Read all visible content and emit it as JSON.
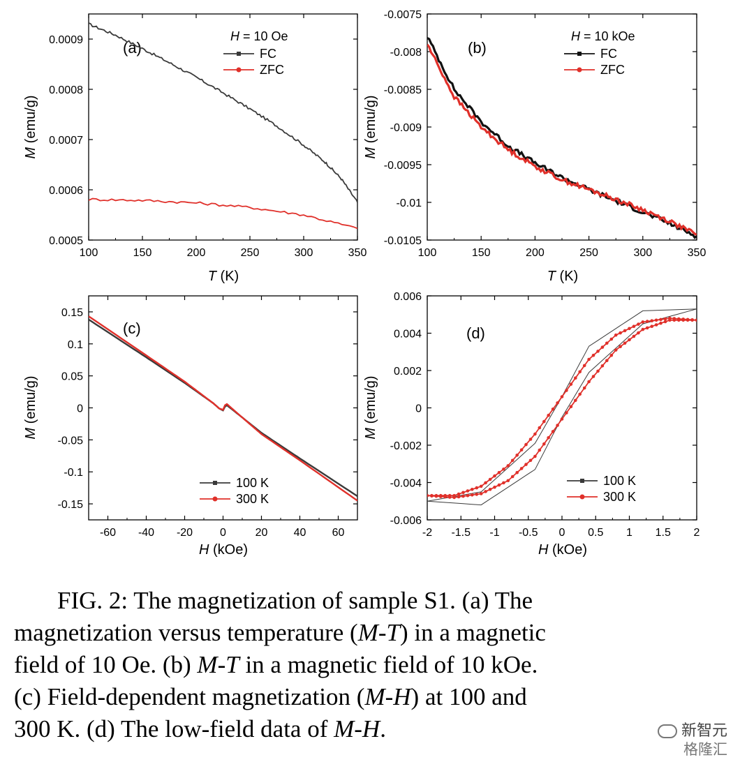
{
  "panels": [
    {
      "id": "a",
      "label": "(a)",
      "field_label": "H = 10 Oe",
      "field_var": "H",
      "field_rest": " = 10 Oe",
      "xlabel_var": "T",
      "xlabel_unit": " (K)",
      "ylabel_var": "M",
      "ylabel_unit": " (emu/g)",
      "xticks": [
        "100",
        "150",
        "200",
        "250",
        "300",
        "350"
      ],
      "yticks": [
        "0.0005",
        "0.0006",
        "0.0007",
        "0.0008",
        "0.0009"
      ],
      "legend": [
        "FC",
        "ZFC"
      ]
    },
    {
      "id": "b",
      "label": "(b)",
      "field_label": "H = 10 kOe",
      "field_var": "H",
      "field_rest": " = 10 kOe",
      "xlabel_var": "T",
      "xlabel_unit": " (K)",
      "ylabel_var": "M",
      "ylabel_unit": " (emu/g)",
      "xticks": [
        "100",
        "150",
        "200",
        "250",
        "300",
        "350"
      ],
      "yticks": [
        "-0.0105",
        "-0.01",
        "-0.0095",
        "-0.009",
        "-0.0085",
        "-0.008",
        "-0.0075"
      ],
      "legend": [
        "FC",
        "ZFC"
      ]
    },
    {
      "id": "c",
      "label": "(c)",
      "xlabel_var": "H",
      "xlabel_unit": " (kOe)",
      "ylabel_var": "M",
      "ylabel_unit": " (emu/g)",
      "xticks": [
        "-60",
        "-40",
        "-20",
        "0",
        "20",
        "40",
        "60"
      ],
      "yticks": [
        "-0.15",
        "-0.1",
        "-0.05",
        "0",
        "0.05",
        "0.1",
        "0.15"
      ],
      "legend": [
        "100 K",
        "300 K"
      ]
    },
    {
      "id": "d",
      "label": "(d)",
      "xlabel_var": "H",
      "xlabel_unit": " (kOe)",
      "ylabel_var": "M",
      "ylabel_unit": " (emu/g)",
      "xticks": [
        "-2",
        "-1.5",
        "-1",
        "-0.5",
        "0",
        "0.5",
        "1",
        "1.5",
        "2"
      ],
      "yticks": [
        "-0.006",
        "-0.004",
        "-0.002",
        "0",
        "0.002",
        "0.004",
        "0.006"
      ],
      "legend": [
        "100 K",
        "300 K"
      ]
    }
  ],
  "colors": {
    "black_series": "#3a3a3a",
    "red_series": "#e0302a"
  },
  "chart_data": [
    {
      "panel": "a",
      "type": "line",
      "xlabel": "T (K)",
      "ylabel": "M (emu/g)",
      "xlim": [
        100,
        350
      ],
      "ylim": [
        0.0005,
        0.00095
      ],
      "legend_title": "H = 10 Oe",
      "legend_position": "top-center",
      "series": [
        {
          "name": "FC",
          "color": "#3a3a3a",
          "noise": 2.5e-06,
          "x": [
            100,
            125,
            150,
            175,
            200,
            225,
            250,
            275,
            300,
            320,
            335,
            350
          ],
          "y": [
            0.00093,
            0.000908,
            0.000881,
            0.000853,
            0.000824,
            0.000793,
            0.000761,
            0.000727,
            0.000689,
            0.000655,
            0.000622,
            0.000575
          ]
        },
        {
          "name": "ZFC",
          "color": "#e0302a",
          "noise": 2.5e-06,
          "x": [
            100,
            150,
            200,
            250,
            300,
            350
          ],
          "y": [
            0.000581,
            0.000579,
            0.000574,
            0.000565,
            0.00055,
            0.000523
          ]
        }
      ]
    },
    {
      "panel": "b",
      "type": "line",
      "xlabel": "T (K)",
      "ylabel": "M (emu/g)",
      "xlim": [
        100,
        350
      ],
      "ylim": [
        -0.0105,
        -0.0075
      ],
      "legend_title": "H = 10 kOe",
      "legend_position": "top-center",
      "series": [
        {
          "name": "FC",
          "color": "#111111",
          "noise": 3e-05,
          "x": [
            100,
            125,
            150,
            175,
            200,
            225,
            250,
            275,
            300,
            325,
            350
          ],
          "y": [
            -0.0078,
            -0.0085,
            -0.00893,
            -0.00925,
            -0.00948,
            -0.00967,
            -0.00983,
            -0.00998,
            -0.01013,
            -0.01028,
            -0.01045
          ]
        },
        {
          "name": "ZFC",
          "color": "#e0302a",
          "noise": 3e-05,
          "x": [
            100,
            125,
            150,
            175,
            200,
            225,
            250,
            275,
            300,
            325,
            350
          ],
          "y": [
            -0.0079,
            -0.0086,
            -0.009,
            -0.0093,
            -0.00952,
            -0.0097,
            -0.00983,
            -0.00996,
            -0.0101,
            -0.01025,
            -0.01043
          ]
        }
      ]
    },
    {
      "panel": "c",
      "type": "line",
      "xlabel": "H (kOe)",
      "ylabel": "M (emu/g)",
      "xlim": [
        -70,
        70
      ],
      "ylim": [
        -0.175,
        0.175
      ],
      "legend_position": "bottom-right",
      "series": [
        {
          "name": "100 K",
          "color": "#3a3a3a",
          "x": [
            -70,
            -40,
            -20,
            -5,
            -2,
            0,
            1,
            2,
            5,
            20,
            40,
            70
          ],
          "y": [
            0.138,
            0.079,
            0.039,
            0.007,
            -0.001,
            -0.004,
            0.002,
            0.004,
            -0.003,
            -0.039,
            -0.079,
            -0.138
          ]
        },
        {
          "name": "300 K",
          "color": "#e0302a",
          "x": [
            -70,
            -40,
            -20,
            -5,
            -2,
            0,
            1,
            2,
            5,
            20,
            40,
            70
          ],
          "y": [
            0.143,
            0.082,
            0.041,
            0.007,
            -0.001,
            -0.003,
            0.004,
            0.006,
            -0.002,
            -0.041,
            -0.082,
            -0.145
          ]
        }
      ]
    },
    {
      "panel": "d",
      "type": "line",
      "xlabel": "H (kOe)",
      "ylabel": "M (emu/g)",
      "xlim": [
        -2,
        2
      ],
      "ylim": [
        -0.006,
        0.006
      ],
      "legend_position": "bottom-right",
      "series": [
        {
          "name": "100 K",
          "color": "#3a3a3a",
          "x": [
            2,
            1.2,
            0.4,
            0,
            -0.4,
            -1.2,
            -2,
            -1.2,
            -0.4,
            0,
            0.4,
            1.2,
            2
          ],
          "y": [
            0.0053,
            0.0052,
            0.0033,
            0.0006,
            -0.0019,
            -0.0045,
            -0.005,
            -0.0052,
            -0.0033,
            -0.0005,
            0.0019,
            0.0045,
            0.0053
          ]
        },
        {
          "name": "300 K",
          "color": "#e0302a",
          "x": [
            2,
            1.6,
            1.2,
            0.8,
            0.4,
            0,
            -0.4,
            -0.8,
            -1.2,
            -1.6,
            -2,
            -1.6,
            -1.2,
            -0.8,
            -0.4,
            0,
            0.4,
            0.8,
            1.2,
            1.6,
            2
          ],
          "y": [
            0.0047,
            0.0048,
            0.0046,
            0.0039,
            0.0026,
            0.0006,
            -0.0014,
            -0.0031,
            -0.0042,
            -0.0047,
            -0.0047,
            -0.0048,
            -0.0046,
            -0.0039,
            -0.0026,
            -0.0006,
            0.0014,
            0.0031,
            0.0042,
            0.0047,
            0.0047
          ]
        }
      ]
    }
  ],
  "caption": {
    "line1": [
      "FIG. 2:  The magnetization of sample S1. (a) The"
    ],
    "line2": [
      "magnetization versus temperature (",
      "M-T",
      ") in a magnetic"
    ],
    "line3": [
      "field of 10 Oe. (b) ",
      "M-T",
      " in a magnetic field of 10 kOe."
    ],
    "line4": [
      "(c) Field-dependent magnetization (",
      "M-H",
      ") at 100 and"
    ],
    "line5": [
      "300 K. (d) The low-field data of ",
      "M-H",
      "."
    ]
  },
  "watermark": {
    "top": "新智元",
    "bottom": "格隆汇"
  }
}
